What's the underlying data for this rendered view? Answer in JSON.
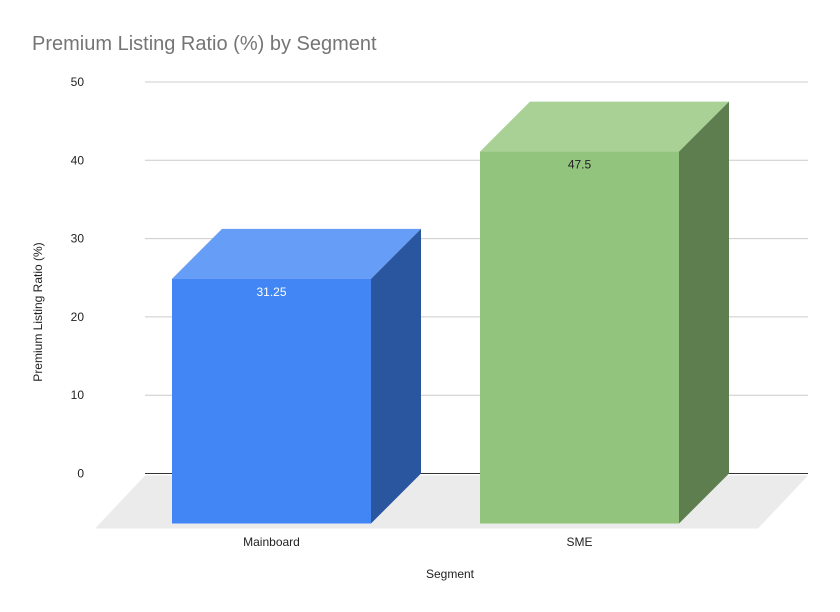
{
  "chart_data": {
    "type": "bar",
    "style": "3d",
    "title": "Premium Listing Ratio (%) by Segment",
    "xlabel": "Segment",
    "ylabel": "Premium Listing Ratio (%)",
    "categories": [
      "Mainboard",
      "SME"
    ],
    "values": [
      31.25,
      47.5
    ],
    "data_labels": [
      "31.25",
      "47.5"
    ],
    "ylim": [
      0,
      50
    ],
    "yticks": [
      "0",
      "10",
      "20",
      "30",
      "40",
      "50"
    ],
    "grid": true,
    "legend": "none",
    "colors": {
      "Mainboard": {
        "front": "#4285f4",
        "top": "#669df6",
        "side": "#2a56a0",
        "label": "#ffffff"
      },
      "SME": {
        "front": "#93c47d",
        "top": "#a9d196",
        "side": "#5e7e4f",
        "label": "#222222"
      }
    }
  }
}
